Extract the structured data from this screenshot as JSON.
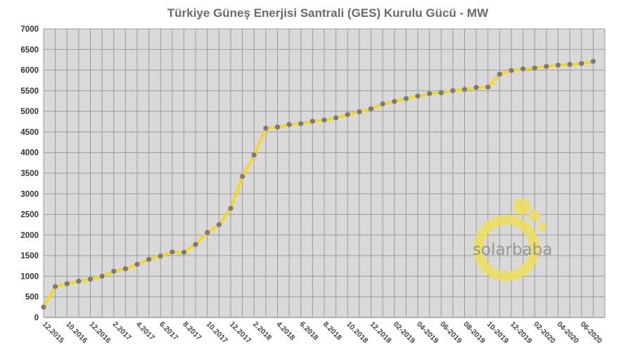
{
  "chart_data": {
    "type": "line",
    "title": "Türkiye Güneş Enerjisi Santrali (GES) Kurulu Gücü - MW",
    "xlabel": "",
    "ylabel": "",
    "ylim": [
      0,
      7000
    ],
    "yticks": [
      0,
      500,
      1000,
      1500,
      2000,
      2500,
      3000,
      3500,
      4000,
      4500,
      5000,
      5500,
      6000,
      6500,
      7000
    ],
    "x_range": [
      0,
      48
    ],
    "x_tick_labels": [
      {
        "x": 0,
        "label": "12.2015"
      },
      {
        "x": 2,
        "label": "10.2016"
      },
      {
        "x": 4,
        "label": "12.2016"
      },
      {
        "x": 6,
        "label": "2.2017"
      },
      {
        "x": 8,
        "label": "4.2017"
      },
      {
        "x": 10,
        "label": "6.2017"
      },
      {
        "x": 12,
        "label": "8.2017"
      },
      {
        "x": 14,
        "label": "10.2017"
      },
      {
        "x": 16,
        "label": "12.2017"
      },
      {
        "x": 18,
        "label": "2.2018"
      },
      {
        "x": 20,
        "label": "4.2018"
      },
      {
        "x": 22,
        "label": "6.2018"
      },
      {
        "x": 24,
        "label": "8.2018"
      },
      {
        "x": 26,
        "label": "10.2018"
      },
      {
        "x": 28,
        "label": "12.2018"
      },
      {
        "x": 30,
        "label": "02-2019"
      },
      {
        "x": 32,
        "label": "04-2019"
      },
      {
        "x": 34,
        "label": "06-2019"
      },
      {
        "x": 36,
        "label": "08-2019"
      },
      {
        "x": 38,
        "label": "10-2019"
      },
      {
        "x": 40,
        "label": "12-2019"
      },
      {
        "x": 42,
        "label": "02-2020"
      },
      {
        "x": 44,
        "label": "04-2020"
      },
      {
        "x": 46,
        "label": "06-2020"
      }
    ],
    "series": [
      {
        "values": [
          250,
          750,
          820,
          880,
          930,
          1000,
          1120,
          1180,
          1290,
          1410,
          1490,
          1590,
          1580,
          1770,
          2060,
          2250,
          2650,
          3420,
          3940,
          4590,
          4620,
          4680,
          4700,
          4760,
          4790,
          4840,
          4920,
          4990,
          5060,
          5180,
          5240,
          5310,
          5370,
          5430,
          5450,
          5500,
          5530,
          5580,
          5590,
          5900,
          5990,
          6030,
          6050,
          6090,
          6120,
          6140,
          6160,
          6210
        ]
      }
    ],
    "grid": true,
    "legend": "none"
  },
  "colors": {
    "plot_background": "#d9d9d9",
    "grid": "#9a9a9a",
    "line": "#f5d824",
    "marker": "#7a7a7a",
    "watermark": "#f0df5a"
  },
  "watermark": {
    "text": "solarbaba"
  }
}
